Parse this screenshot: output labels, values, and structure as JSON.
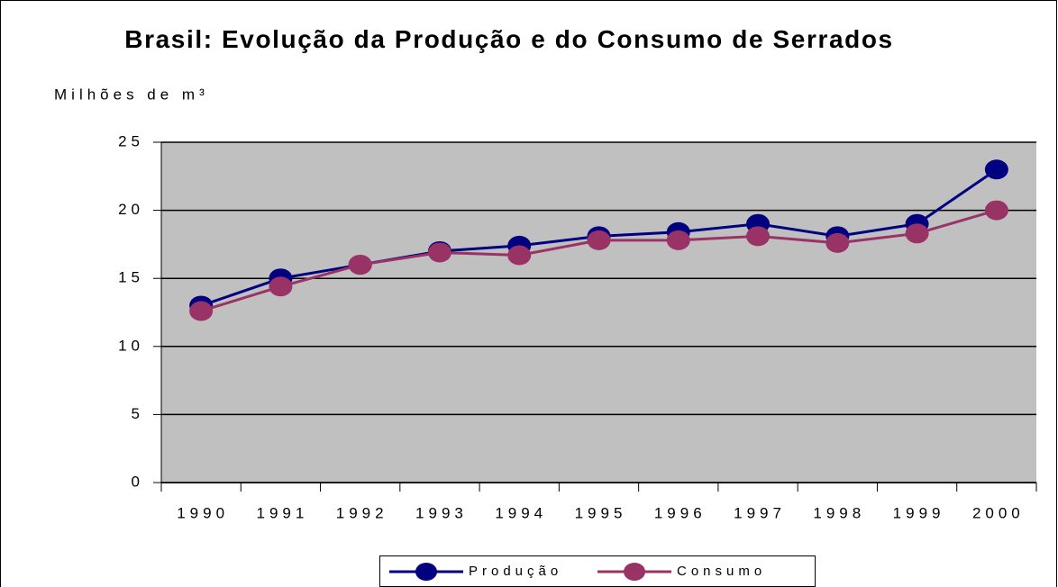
{
  "chart_data": {
    "type": "line",
    "title": "Brasil: Evolução da Produção e do Consumo de Serrados",
    "y_label": "Milhões de m³",
    "categories": [
      "1990",
      "1991",
      "1992",
      "1993",
      "1994",
      "1995",
      "1996",
      "1997",
      "1998",
      "1999",
      "2000"
    ],
    "series": [
      {
        "name": "Produção",
        "color": "#000080",
        "values": [
          13,
          15,
          16,
          17,
          17.4,
          18.1,
          18.4,
          19,
          18.1,
          19,
          23
        ]
      },
      {
        "name": "Consumo",
        "color": "#993366",
        "values": [
          12.6,
          14.4,
          16,
          16.9,
          16.7,
          17.8,
          17.8,
          18.1,
          17.6,
          18.3,
          20
        ]
      }
    ],
    "ylim": [
      0,
      25
    ],
    "yticks": [
      0,
      5,
      10,
      15,
      20,
      25
    ],
    "grid": true,
    "legend": "bottom"
  }
}
